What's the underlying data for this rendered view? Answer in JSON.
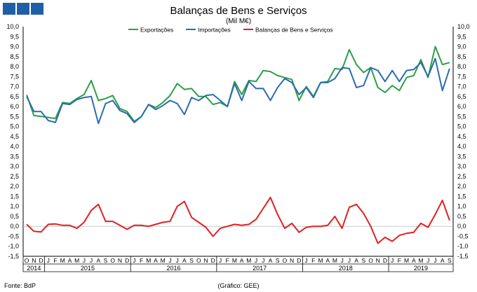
{
  "branding": {
    "block_color": "#1f5fa8",
    "block_count": 3
  },
  "footer": {
    "source": "Fonte: BdP",
    "credit": "(Gráfico: GEE)"
  },
  "colors": {
    "exports": "#2e9e4a",
    "imports": "#2b6cb0",
    "balance": "#e02020"
  },
  "chart_data": {
    "type": "line",
    "title": "Balanças de Bens e Serviços",
    "subtitle": "(Mil M€)",
    "ylim": [
      -1.5,
      10.0
    ],
    "y_ticks": [
      "10,0",
      "9,5",
      "9,0",
      "8,5",
      "8,0",
      "7,5",
      "7,0",
      "6,5",
      "6,0",
      "5,5",
      "5,0",
      "4,5",
      "4,0",
      "3,5",
      "3,0",
      "2,5",
      "2,0",
      "1,5",
      "1,0",
      "0,5",
      "0,0",
      "-0,5",
      "-1,0",
      "-1,5"
    ],
    "legend_position": "top-center",
    "month_labels": [
      "O",
      "N",
      "D",
      "J",
      "F",
      "M",
      "A",
      "M",
      "J",
      "J",
      "A",
      "S",
      "O",
      "N",
      "D",
      "J",
      "F",
      "M",
      "A",
      "M",
      "J",
      "J",
      "A",
      "S",
      "O",
      "N",
      "D",
      "J",
      "F",
      "M",
      "A",
      "M",
      "J",
      "J",
      "A",
      "S",
      "O",
      "N",
      "D",
      "J",
      "F",
      "M",
      "A",
      "M",
      "J",
      "J",
      "A",
      "S",
      "O",
      "N",
      "D",
      "J",
      "F",
      "M",
      "A",
      "M",
      "J",
      "J",
      "A",
      "S"
    ],
    "years": [
      {
        "label": "2014",
        "start": 0,
        "end": 3
      },
      {
        "label": "2015",
        "start": 3,
        "end": 15
      },
      {
        "label": "2016",
        "start": 15,
        "end": 27
      },
      {
        "label": "2017",
        "start": 27,
        "end": 39
      },
      {
        "label": "2018",
        "start": 39,
        "end": 51
      },
      {
        "label": "2019",
        "start": 51,
        "end": 60
      }
    ],
    "series": [
      {
        "name": "Exportações",
        "color": "#2e9e4a",
        "values": [
          6.58,
          5.55,
          5.5,
          5.45,
          5.4,
          6.2,
          6.15,
          6.4,
          6.6,
          7.3,
          6.3,
          6.4,
          6.55,
          5.9,
          5.75,
          5.25,
          5.5,
          6.1,
          5.95,
          6.2,
          6.55,
          7.15,
          6.85,
          6.9,
          6.5,
          6.5,
          6.1,
          6.2,
          6.0,
          7.25,
          6.6,
          7.3,
          7.25,
          7.8,
          7.75,
          7.55,
          7.45,
          7.35,
          6.3,
          7.0,
          6.5,
          7.2,
          7.25,
          7.9,
          7.85,
          8.85,
          8.1,
          7.7,
          7.95,
          6.95,
          6.7,
          7.05,
          6.8,
          7.45,
          7.55,
          8.35,
          7.45,
          9.0,
          8.1,
          8.2
        ]
      },
      {
        "name": "Importações",
        "color": "#2b6cb0",
        "values": [
          6.5,
          5.75,
          5.75,
          5.3,
          5.2,
          6.15,
          6.1,
          6.35,
          6.45,
          6.5,
          5.15,
          6.15,
          6.3,
          5.8,
          5.65,
          5.2,
          5.5,
          6.1,
          5.85,
          6.05,
          6.3,
          6.15,
          5.6,
          6.45,
          6.3,
          6.55,
          6.6,
          6.3,
          6.0,
          7.15,
          6.3,
          7.25,
          6.9,
          6.9,
          6.3,
          6.95,
          7.4,
          7.2,
          6.6,
          6.95,
          6.45,
          7.2,
          7.2,
          7.4,
          7.95,
          7.9,
          6.95,
          7.05,
          7.95,
          7.8,
          7.25,
          7.8,
          7.25,
          7.8,
          7.85,
          8.2,
          7.5,
          8.4,
          6.8,
          7.9
        ]
      },
      {
        "name": "Balanças de Bens e Serviços",
        "color": "#e02020",
        "values": [
          0.1,
          -0.25,
          -0.28,
          0.1,
          0.12,
          0.05,
          0.05,
          -0.1,
          0.2,
          0.8,
          1.1,
          0.25,
          0.25,
          0.05,
          -0.15,
          0.05,
          0.05,
          0.0,
          0.1,
          0.2,
          0.25,
          1.0,
          1.25,
          0.45,
          0.2,
          -0.05,
          -0.5,
          -0.1,
          0.0,
          0.1,
          0.05,
          0.1,
          0.35,
          0.9,
          1.45,
          0.6,
          -0.1,
          0.15,
          -0.3,
          -0.05,
          0.0,
          0.0,
          0.05,
          0.5,
          -0.1,
          0.95,
          1.1,
          0.65,
          0.0,
          -0.85,
          -0.55,
          -0.75,
          -0.45,
          -0.35,
          -0.3,
          0.15,
          -0.05,
          0.6,
          1.3,
          0.3
        ]
      }
    ]
  }
}
